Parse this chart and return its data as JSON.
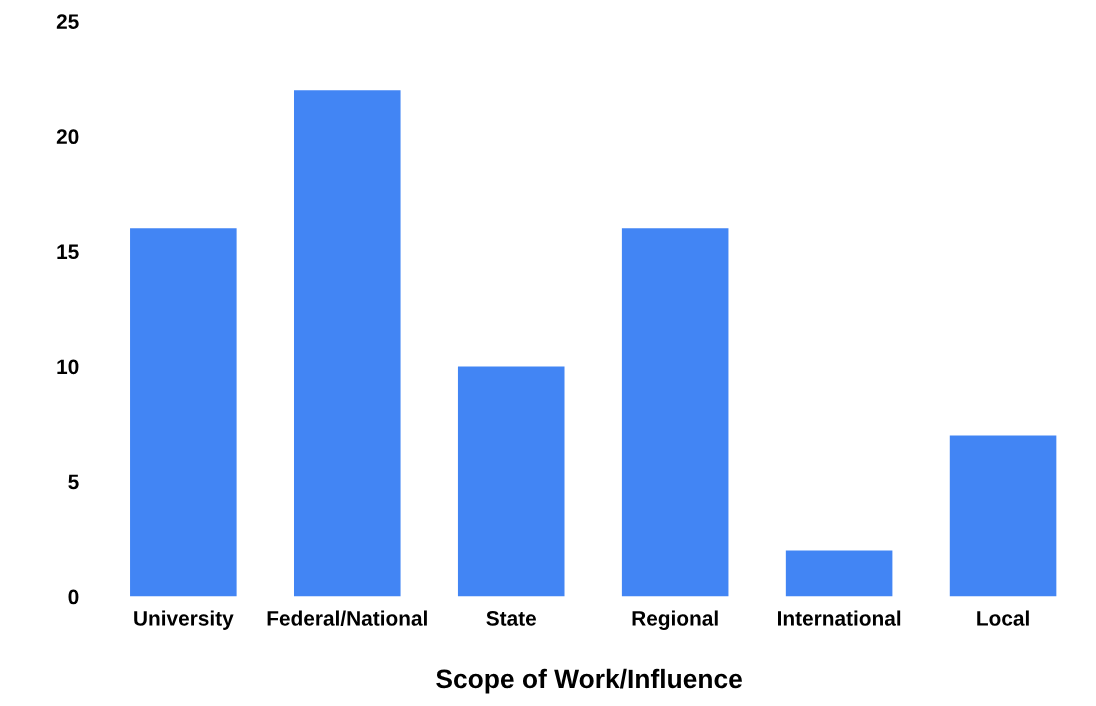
{
  "chart_data": {
    "type": "bar",
    "xlabel": "Scope of Work/Influence",
    "categories": [
      "University",
      "Federal/National",
      "State",
      "Regional",
      "International",
      "Local"
    ],
    "values": [
      16,
      22,
      10,
      16,
      2,
      7
    ],
    "color": "#4285f4",
    "ylim": [
      0,
      25
    ],
    "yticks": [
      0,
      5,
      10,
      15,
      20,
      25
    ],
    "grid": false,
    "legend": false
  }
}
